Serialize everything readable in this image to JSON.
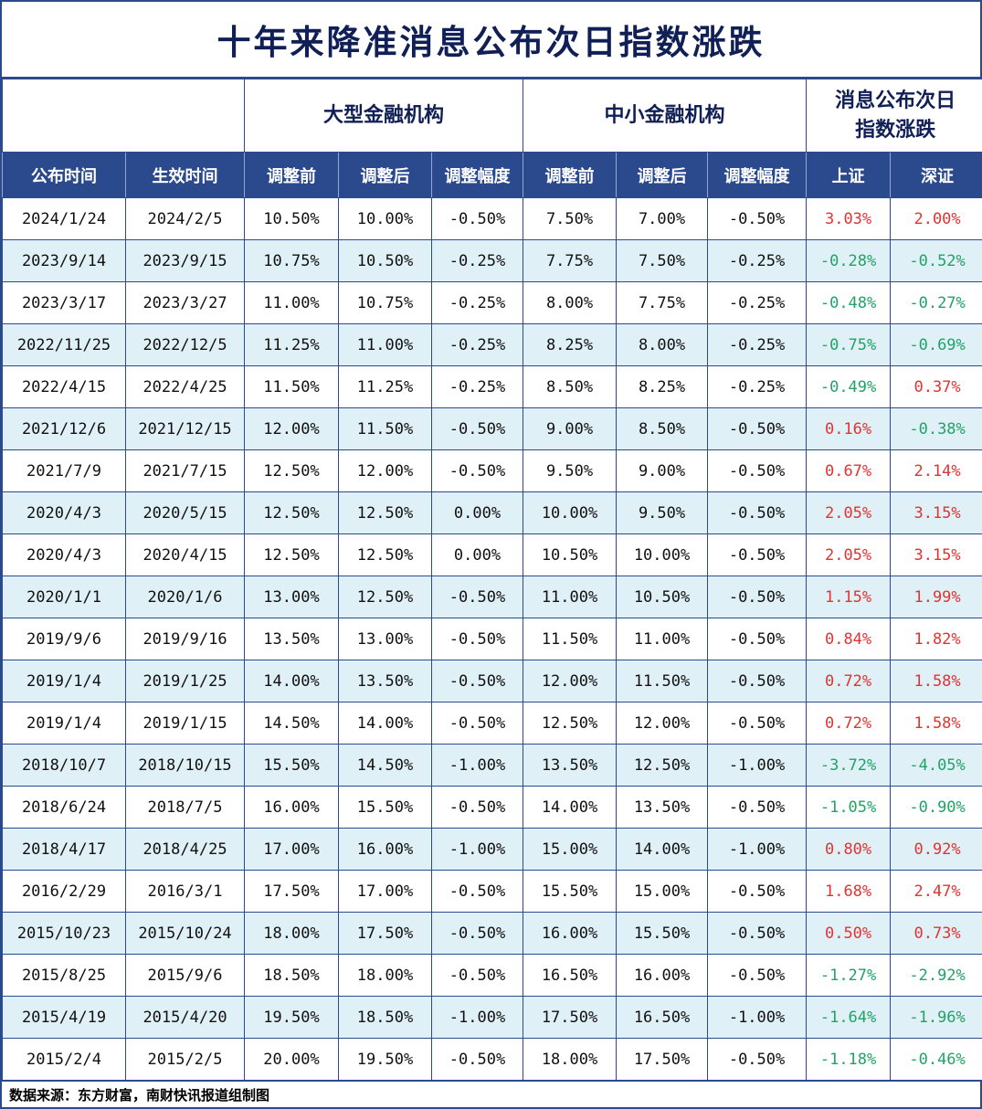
{
  "chart_data": {
    "type": "table",
    "title": "十年来降准消息公布次日指数涨跌",
    "group_headers": {
      "large_institutions": "大型金融机构",
      "small_institutions": "中小金融机构",
      "index_change": "消息公布次日\n指数涨跌"
    },
    "columns": [
      "公布时间",
      "生效时间",
      "调整前",
      "调整后",
      "调整幅度",
      "调整前",
      "调整后",
      "调整幅度",
      "上证",
      "深证"
    ],
    "rows": [
      [
        "2024/1/24",
        "2024/2/5",
        "10.50%",
        "10.00%",
        "-0.50%",
        "7.50%",
        "7.00%",
        "-0.50%",
        "3.03%",
        "2.00%"
      ],
      [
        "2023/9/14",
        "2023/9/15",
        "10.75%",
        "10.50%",
        "-0.25%",
        "7.75%",
        "7.50%",
        "-0.25%",
        "-0.28%",
        "-0.52%"
      ],
      [
        "2023/3/17",
        "2023/3/27",
        "11.00%",
        "10.75%",
        "-0.25%",
        "8.00%",
        "7.75%",
        "-0.25%",
        "-0.48%",
        "-0.27%"
      ],
      [
        "2022/11/25",
        "2022/12/5",
        "11.25%",
        "11.00%",
        "-0.25%",
        "8.25%",
        "8.00%",
        "-0.25%",
        "-0.75%",
        "-0.69%"
      ],
      [
        "2022/4/15",
        "2022/4/25",
        "11.50%",
        "11.25%",
        "-0.25%",
        "8.50%",
        "8.25%",
        "-0.25%",
        "-0.49%",
        "0.37%"
      ],
      [
        "2021/12/6",
        "2021/12/15",
        "12.00%",
        "11.50%",
        "-0.50%",
        "9.00%",
        "8.50%",
        "-0.50%",
        "0.16%",
        "-0.38%"
      ],
      [
        "2021/7/9",
        "2021/7/15",
        "12.50%",
        "12.00%",
        "-0.50%",
        "9.50%",
        "9.00%",
        "-0.50%",
        "0.67%",
        "2.14%"
      ],
      [
        "2020/4/3",
        "2020/5/15",
        "12.50%",
        "12.50%",
        "0.00%",
        "10.00%",
        "9.50%",
        "-0.50%",
        "2.05%",
        "3.15%"
      ],
      [
        "2020/4/3",
        "2020/4/15",
        "12.50%",
        "12.50%",
        "0.00%",
        "10.50%",
        "10.00%",
        "-0.50%",
        "2.05%",
        "3.15%"
      ],
      [
        "2020/1/1",
        "2020/1/6",
        "13.00%",
        "12.50%",
        "-0.50%",
        "11.00%",
        "10.50%",
        "-0.50%",
        "1.15%",
        "1.99%"
      ],
      [
        "2019/9/6",
        "2019/9/16",
        "13.50%",
        "13.00%",
        "-0.50%",
        "11.50%",
        "11.00%",
        "-0.50%",
        "0.84%",
        "1.82%"
      ],
      [
        "2019/1/4",
        "2019/1/25",
        "14.00%",
        "13.50%",
        "-0.50%",
        "12.00%",
        "11.50%",
        "-0.50%",
        "0.72%",
        "1.58%"
      ],
      [
        "2019/1/4",
        "2019/1/15",
        "14.50%",
        "14.00%",
        "-0.50%",
        "12.50%",
        "12.00%",
        "-0.50%",
        "0.72%",
        "1.58%"
      ],
      [
        "2018/10/7",
        "2018/10/15",
        "15.50%",
        "14.50%",
        "-1.00%",
        "13.50%",
        "12.50%",
        "-1.00%",
        "-3.72%",
        "-4.05%"
      ],
      [
        "2018/6/24",
        "2018/7/5",
        "16.00%",
        "15.50%",
        "-0.50%",
        "14.00%",
        "13.50%",
        "-0.50%",
        "-1.05%",
        "-0.90%"
      ],
      [
        "2018/4/17",
        "2018/4/25",
        "17.00%",
        "16.00%",
        "-1.00%",
        "15.00%",
        "14.00%",
        "-1.00%",
        "0.80%",
        "0.92%"
      ],
      [
        "2016/2/29",
        "2016/3/1",
        "17.50%",
        "17.00%",
        "-0.50%",
        "15.50%",
        "15.00%",
        "-0.50%",
        "1.68%",
        "2.47%"
      ],
      [
        "2015/10/23",
        "2015/10/24",
        "18.00%",
        "17.50%",
        "-0.50%",
        "16.00%",
        "15.50%",
        "-0.50%",
        "0.50%",
        "0.73%"
      ],
      [
        "2015/8/25",
        "2015/9/6",
        "18.50%",
        "18.00%",
        "-0.50%",
        "16.50%",
        "16.00%",
        "-0.50%",
        "-1.27%",
        "-2.92%"
      ],
      [
        "2015/4/19",
        "2015/4/20",
        "19.50%",
        "18.50%",
        "-1.00%",
        "17.50%",
        "16.50%",
        "-1.00%",
        "-1.64%",
        "-1.96%"
      ],
      [
        "2015/2/4",
        "2015/2/5",
        "20.00%",
        "19.50%",
        "-0.50%",
        "18.00%",
        "17.50%",
        "-0.50%",
        "-1.18%",
        "-0.46%"
      ]
    ],
    "source": "数据来源：东方财富，南财快讯报道组制图"
  },
  "colors": {
    "up": "#e03333",
    "down": "#21a366",
    "header_bg": "#2b4a8e",
    "alt_row_bg": "#dff0f7",
    "border": "#2b4a8e",
    "title_color": "#101f56"
  }
}
